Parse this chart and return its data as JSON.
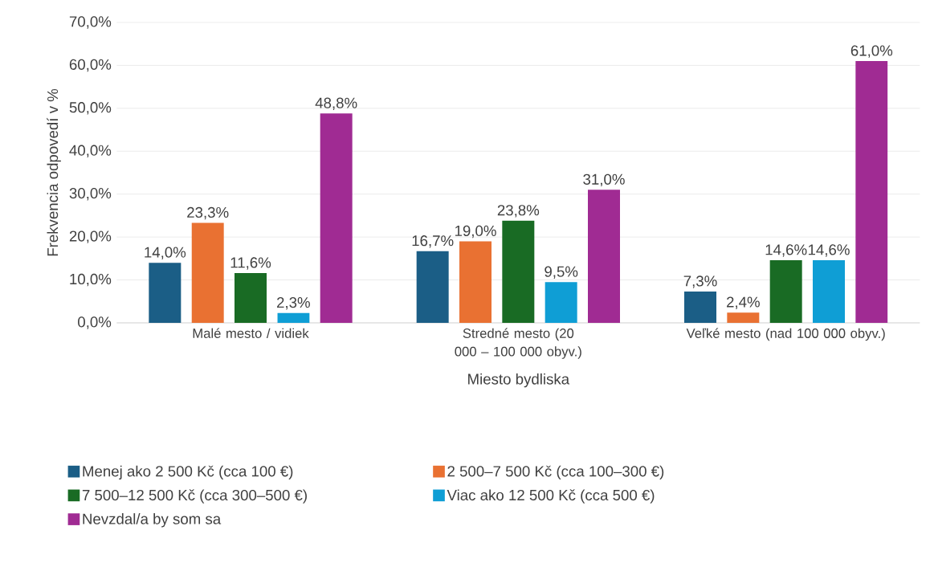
{
  "chart_data": {
    "type": "bar",
    "xlabel": "Miesto bydliska",
    "ylabel": "Frekvencia odpovedí v %",
    "categories": [
      "Malé mesto / vidiek",
      "Stredné mesto (20 000 – 100 000 obyv.)",
      "Veľké mesto (nad 100 000 obyv.)"
    ],
    "series": [
      {
        "name": "Menej ako 2 500 Kč (cca 100 €)",
        "color": "#1b5e86",
        "values": [
          14.0,
          16.7,
          7.3
        ],
        "value_labels": [
          "14,0%",
          "16,7%",
          "7,3%"
        ]
      },
      {
        "name": "2 500–7 500 Kč (cca 100–300 €)",
        "color": "#e97132",
        "values": [
          23.3,
          19.0,
          2.4
        ],
        "value_labels": [
          "23,3%",
          "19,0%",
          "2,4%"
        ]
      },
      {
        "name": "7 500–12 500 Kč (cca 300–500 €)",
        "color": "#196b24",
        "values": [
          11.6,
          23.8,
          14.6
        ],
        "value_labels": [
          "11,6%",
          "23,8%",
          "14,6%"
        ]
      },
      {
        "name": "Viac ako 12 500 Kč (cca 500 €)",
        "color": "#0f9ed5",
        "values": [
          2.3,
          9.5,
          14.6
        ],
        "value_labels": [
          "2,3%",
          "9,5%",
          "14,6%"
        ]
      },
      {
        "name": "Nevzdal/a by som sa",
        "color": "#a02b93",
        "values": [
          48.8,
          31.0,
          61.0
        ],
        "value_labels": [
          "48,8%",
          "31,0%",
          "61,0%"
        ]
      }
    ],
    "ylim": [
      0,
      70
    ],
    "yticks": [
      {
        "value": 0,
        "label": "0,0%"
      },
      {
        "value": 10,
        "label": "10,0%"
      },
      {
        "value": 20,
        "label": "20,0%"
      },
      {
        "value": 30,
        "label": "30,0%"
      },
      {
        "value": 40,
        "label": "40,0%"
      },
      {
        "value": 50,
        "label": "50,0%"
      },
      {
        "value": 60,
        "label": "60,0%"
      },
      {
        "value": 70,
        "label": "70,0%"
      }
    ],
    "grid": "y",
    "legend": "bottom"
  }
}
